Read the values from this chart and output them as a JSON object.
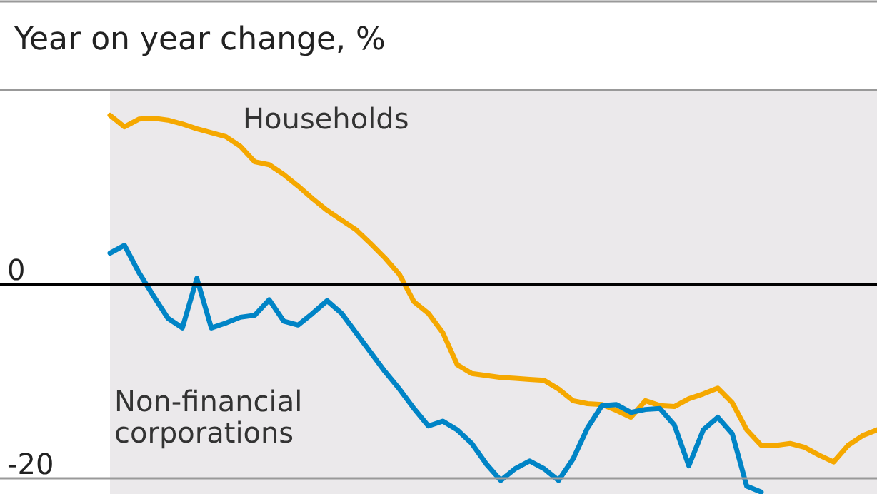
{
  "chart_data": {
    "type": "line",
    "title": "Year on year change, %",
    "categories": [
      null,
      null,
      null,
      null,
      null,
      null,
      null,
      null,
      null,
      null,
      null,
      null,
      null,
      null,
      null,
      null,
      null,
      null,
      null,
      null,
      null,
      null,
      null,
      null,
      null,
      null,
      null,
      null,
      null,
      null,
      null,
      null,
      null,
      null,
      null,
      null,
      null,
      null,
      null,
      null,
      null,
      null,
      null,
      null,
      null,
      null,
      null,
      null,
      null,
      null,
      null,
      null,
      null,
      null
    ],
    "series": [
      {
        "name": "Households",
        "color": "#f5a800",
        "values": [
          17.4,
          16.2,
          17.0,
          17.1,
          16.9,
          16.5,
          16.0,
          15.6,
          15.2,
          14.2,
          12.6,
          12.3,
          11.3,
          10.1,
          8.8,
          7.6,
          6.6,
          5.6,
          4.2,
          2.7,
          1.0,
          -1.8,
          -3.0,
          -5.0,
          -8.3,
          -9.2,
          -9.4,
          -9.6,
          -9.7,
          -9.8,
          -9.9,
          -10.8,
          -12.0,
          -12.3,
          -12.4,
          -13.0,
          -13.7,
          -12.0,
          -12.5,
          -12.6,
          -11.8,
          -11.3,
          -10.7,
          -12.2,
          -15.0,
          -16.6,
          -16.6,
          -16.4,
          -16.8,
          -17.6,
          -18.3,
          -16.6,
          -15.6,
          -15.0
        ]
      },
      {
        "name": "Non-financial corporations",
        "color": "#0084c6",
        "values": [
          3.2,
          4.0,
          1.2,
          -1.2,
          -3.5,
          -4.5,
          0.6,
          -4.5,
          -4.0,
          -3.4,
          -3.2,
          -1.6,
          -3.8,
          -4.2,
          -3.0,
          -1.7,
          -3.0,
          -5.0,
          -7.0,
          -9.0,
          -10.8,
          -12.8,
          -14.6,
          -14.1,
          -15.0,
          -16.4,
          -18.5,
          -20.2,
          -19.0,
          -18.2,
          -19.0,
          -20.2,
          -18.0,
          -14.8,
          -12.5,
          -12.4,
          -13.2,
          -12.9,
          -12.8,
          -14.5,
          -18.7,
          -15.0,
          -13.7,
          -15.4,
          -20.8,
          -21.4,
          null,
          null,
          null,
          null,
          null,
          null,
          null,
          null
        ]
      }
    ],
    "ylim": [
      -21.6,
      20
    ],
    "yticks": [
      0,
      -20
    ],
    "ref_lines": [
      {
        "axis": "y",
        "value": 0,
        "color": "#000000"
      },
      {
        "axis": "y",
        "value": 20,
        "color": "#999999"
      },
      {
        "axis": "y",
        "value": -20,
        "color": "#999999"
      }
    ],
    "legend": false,
    "line_style": "solid",
    "marker": "none"
  }
}
